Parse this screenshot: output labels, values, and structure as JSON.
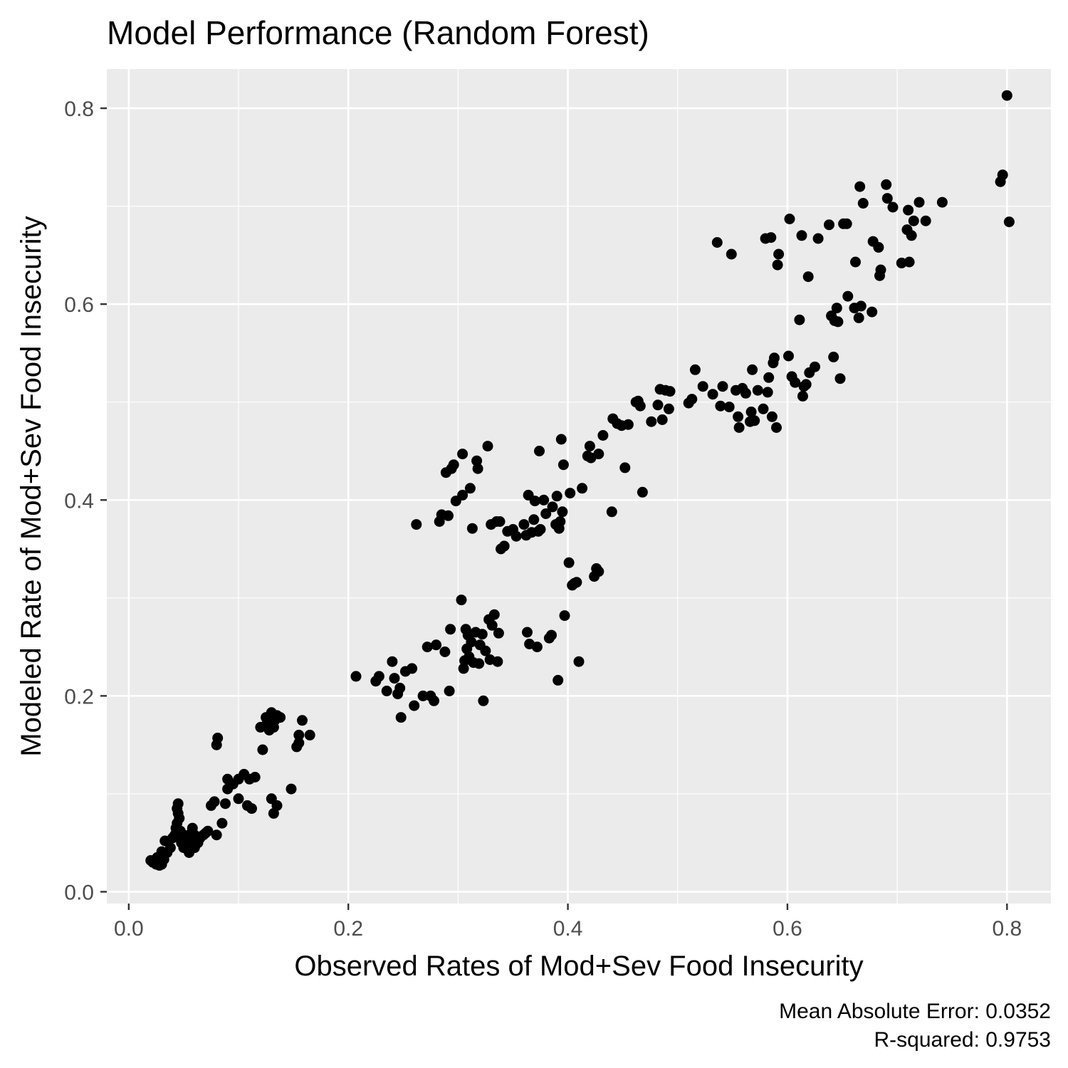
{
  "chart_data": {
    "type": "scatter",
    "title": "Model Performance (Random Forest)",
    "xlabel": "Observed Rates of Mod+Sev Food Insecurity",
    "ylabel": "Modeled Rate of Mod+Sev Food Insecurity",
    "xlim": [
      -0.02,
      0.84
    ],
    "ylim": [
      -0.012,
      0.84
    ],
    "x_ticks": [
      0.0,
      0.2,
      0.4,
      0.6,
      0.8
    ],
    "x_tick_labels": [
      "0.0",
      "0.2",
      "0.4",
      "0.6",
      "0.8"
    ],
    "y_ticks": [
      0.0,
      0.2,
      0.4,
      0.6,
      0.8
    ],
    "y_tick_labels": [
      "0.0",
      "0.2",
      "0.4",
      "0.6",
      "0.8"
    ],
    "grid": true,
    "legend": "none",
    "colors": {
      "panel": "#ebebeb",
      "point": "#000000",
      "tick_text": "#4d4d4d"
    },
    "caption": [
      "Mean Absolute Error: 0.0352",
      "R-squared: 0.9753"
    ],
    "points": [
      [
        0.02,
        0.032
      ],
      [
        0.022,
        0.03
      ],
      [
        0.025,
        0.028
      ],
      [
        0.028,
        0.027
      ],
      [
        0.03,
        0.028
      ],
      [
        0.026,
        0.035
      ],
      [
        0.032,
        0.033
      ],
      [
        0.035,
        0.04
      ],
      [
        0.03,
        0.041
      ],
      [
        0.038,
        0.045
      ],
      [
        0.033,
        0.052
      ],
      [
        0.04,
        0.055
      ],
      [
        0.042,
        0.058
      ],
      [
        0.045,
        0.06
      ],
      [
        0.043,
        0.065
      ],
      [
        0.044,
        0.07
      ],
      [
        0.046,
        0.075
      ],
      [
        0.045,
        0.08
      ],
      [
        0.044,
        0.085
      ],
      [
        0.045,
        0.09
      ],
      [
        0.047,
        0.062
      ],
      [
        0.05,
        0.058
      ],
      [
        0.048,
        0.05
      ],
      [
        0.052,
        0.055
      ],
      [
        0.053,
        0.048
      ],
      [
        0.055,
        0.052
      ],
      [
        0.05,
        0.045
      ],
      [
        0.057,
        0.06
      ],
      [
        0.058,
        0.065
      ],
      [
        0.06,
        0.058
      ],
      [
        0.062,
        0.055
      ],
      [
        0.055,
        0.04
      ],
      [
        0.06,
        0.045
      ],
      [
        0.063,
        0.05
      ],
      [
        0.065,
        0.055
      ],
      [
        0.068,
        0.058
      ],
      [
        0.07,
        0.06
      ],
      [
        0.072,
        0.062
      ],
      [
        0.075,
        0.088
      ],
      [
        0.078,
        0.092
      ],
      [
        0.08,
        0.058
      ],
      [
        0.08,
        0.15
      ],
      [
        0.081,
        0.157
      ],
      [
        0.085,
        0.07
      ],
      [
        0.088,
        0.09
      ],
      [
        0.09,
        0.105
      ],
      [
        0.09,
        0.115
      ],
      [
        0.095,
        0.11
      ],
      [
        0.1,
        0.095
      ],
      [
        0.1,
        0.115
      ],
      [
        0.105,
        0.12
      ],
      [
        0.108,
        0.088
      ],
      [
        0.11,
        0.115
      ],
      [
        0.112,
        0.085
      ],
      [
        0.115,
        0.117
      ],
      [
        0.12,
        0.168
      ],
      [
        0.122,
        0.145
      ],
      [
        0.125,
        0.17
      ],
      [
        0.125,
        0.178
      ],
      [
        0.128,
        0.165
      ],
      [
        0.13,
        0.172
      ],
      [
        0.13,
        0.183
      ],
      [
        0.132,
        0.168
      ],
      [
        0.133,
        0.175
      ],
      [
        0.135,
        0.18
      ],
      [
        0.138,
        0.178
      ],
      [
        0.13,
        0.095
      ],
      [
        0.132,
        0.08
      ],
      [
        0.135,
        0.088
      ],
      [
        0.148,
        0.105
      ],
      [
        0.153,
        0.148
      ],
      [
        0.155,
        0.152
      ],
      [
        0.155,
        0.16
      ],
      [
        0.158,
        0.175
      ],
      [
        0.165,
        0.16
      ],
      [
        0.207,
        0.22
      ],
      [
        0.225,
        0.215
      ],
      [
        0.228,
        0.22
      ],
      [
        0.235,
        0.205
      ],
      [
        0.24,
        0.235
      ],
      [
        0.242,
        0.218
      ],
      [
        0.245,
        0.202
      ],
      [
        0.247,
        0.208
      ],
      [
        0.248,
        0.178
      ],
      [
        0.252,
        0.225
      ],
      [
        0.258,
        0.228
      ],
      [
        0.26,
        0.19
      ],
      [
        0.262,
        0.375
      ],
      [
        0.268,
        0.2
      ],
      [
        0.272,
        0.25
      ],
      [
        0.275,
        0.2
      ],
      [
        0.278,
        0.195
      ],
      [
        0.28,
        0.252
      ],
      [
        0.283,
        0.378
      ],
      [
        0.285,
        0.385
      ],
      [
        0.288,
        0.245
      ],
      [
        0.289,
        0.428
      ],
      [
        0.291,
        0.384
      ],
      [
        0.292,
        0.205
      ],
      [
        0.293,
        0.268
      ],
      [
        0.294,
        0.432
      ],
      [
        0.296,
        0.436
      ],
      [
        0.298,
        0.399
      ],
      [
        0.303,
        0.298
      ],
      [
        0.304,
        0.405
      ],
      [
        0.304,
        0.447
      ],
      [
        0.305,
        0.228
      ],
      [
        0.306,
        0.236
      ],
      [
        0.307,
        0.268
      ],
      [
        0.308,
        0.248
      ],
      [
        0.309,
        0.262
      ],
      [
        0.31,
        0.24
      ],
      [
        0.311,
        0.412
      ],
      [
        0.312,
        0.255
      ],
      [
        0.313,
        0.371
      ],
      [
        0.314,
        0.234
      ],
      [
        0.316,
        0.265
      ],
      [
        0.317,
        0.44
      ],
      [
        0.318,
        0.432
      ],
      [
        0.319,
        0.233
      ],
      [
        0.32,
        0.252
      ],
      [
        0.322,
        0.263
      ],
      [
        0.323,
        0.195
      ],
      [
        0.325,
        0.246
      ],
      [
        0.327,
        0.455
      ],
      [
        0.328,
        0.278
      ],
      [
        0.329,
        0.237
      ],
      [
        0.33,
        0.375
      ],
      [
        0.331,
        0.272
      ],
      [
        0.333,
        0.283
      ],
      [
        0.335,
        0.378
      ],
      [
        0.336,
        0.235
      ],
      [
        0.337,
        0.264
      ],
      [
        0.338,
        0.378
      ],
      [
        0.339,
        0.35
      ],
      [
        0.342,
        0.353
      ],
      [
        0.345,
        0.368
      ],
      [
        0.35,
        0.37
      ],
      [
        0.353,
        0.363
      ],
      [
        0.36,
        0.375
      ],
      [
        0.362,
        0.364
      ],
      [
        0.363,
        0.265
      ],
      [
        0.364,
        0.405
      ],
      [
        0.365,
        0.253
      ],
      [
        0.367,
        0.367
      ],
      [
        0.369,
        0.38
      ],
      [
        0.37,
        0.399
      ],
      [
        0.372,
        0.25
      ],
      [
        0.373,
        0.368
      ],
      [
        0.374,
        0.45
      ],
      [
        0.375,
        0.37
      ],
      [
        0.378,
        0.4
      ],
      [
        0.38,
        0.386
      ],
      [
        0.383,
        0.259
      ],
      [
        0.385,
        0.262
      ],
      [
        0.386,
        0.393
      ],
      [
        0.389,
        0.375
      ],
      [
        0.39,
        0.404
      ],
      [
        0.391,
        0.216
      ],
      [
        0.392,
        0.371
      ],
      [
        0.393,
        0.378
      ],
      [
        0.394,
        0.462
      ],
      [
        0.395,
        0.388
      ],
      [
        0.396,
        0.436
      ],
      [
        0.397,
        0.282
      ],
      [
        0.401,
        0.336
      ],
      [
        0.402,
        0.407
      ],
      [
        0.404,
        0.313
      ],
      [
        0.406,
        0.315
      ],
      [
        0.408,
        0.316
      ],
      [
        0.41,
        0.235
      ],
      [
        0.413,
        0.412
      ],
      [
        0.418,
        0.445
      ],
      [
        0.42,
        0.455
      ],
      [
        0.421,
        0.443
      ],
      [
        0.424,
        0.322
      ],
      [
        0.426,
        0.33
      ],
      [
        0.428,
        0.327
      ],
      [
        0.428,
        0.447
      ],
      [
        0.432,
        0.466
      ],
      [
        0.44,
        0.388
      ],
      [
        0.441,
        0.483
      ],
      [
        0.445,
        0.478
      ],
      [
        0.449,
        0.476
      ],
      [
        0.452,
        0.433
      ],
      [
        0.455,
        0.477
      ],
      [
        0.462,
        0.5
      ],
      [
        0.464,
        0.501
      ],
      [
        0.466,
        0.496
      ],
      [
        0.468,
        0.408
      ],
      [
        0.476,
        0.48
      ],
      [
        0.482,
        0.497
      ],
      [
        0.484,
        0.513
      ],
      [
        0.486,
        0.482
      ],
      [
        0.489,
        0.512
      ],
      [
        0.492,
        0.493
      ],
      [
        0.493,
        0.511
      ],
      [
        0.51,
        0.499
      ],
      [
        0.513,
        0.503
      ],
      [
        0.516,
        0.533
      ],
      [
        0.523,
        0.516
      ],
      [
        0.532,
        0.508
      ],
      [
        0.536,
        0.663
      ],
      [
        0.539,
        0.496
      ],
      [
        0.541,
        0.516
      ],
      [
        0.547,
        0.495
      ],
      [
        0.549,
        0.651
      ],
      [
        0.553,
        0.512
      ],
      [
        0.555,
        0.485
      ],
      [
        0.556,
        0.474
      ],
      [
        0.559,
        0.514
      ],
      [
        0.562,
        0.509
      ],
      [
        0.566,
        0.48
      ],
      [
        0.567,
        0.49
      ],
      [
        0.568,
        0.533
      ],
      [
        0.57,
        0.481
      ],
      [
        0.573,
        0.512
      ],
      [
        0.578,
        0.493
      ],
      [
        0.58,
        0.667
      ],
      [
        0.582,
        0.51
      ],
      [
        0.583,
        0.525
      ],
      [
        0.585,
        0.668
      ],
      [
        0.586,
        0.485
      ],
      [
        0.587,
        0.54
      ],
      [
        0.588,
        0.545
      ],
      [
        0.59,
        0.474
      ],
      [
        0.591,
        0.64
      ],
      [
        0.592,
        0.651
      ],
      [
        0.601,
        0.547
      ],
      [
        0.602,
        0.687
      ],
      [
        0.604,
        0.526
      ],
      [
        0.607,
        0.52
      ],
      [
        0.611,
        0.584
      ],
      [
        0.613,
        0.67
      ],
      [
        0.614,
        0.506
      ],
      [
        0.615,
        0.516
      ],
      [
        0.617,
        0.518
      ],
      [
        0.619,
        0.628
      ],
      [
        0.62,
        0.53
      ],
      [
        0.625,
        0.536
      ],
      [
        0.628,
        0.667
      ],
      [
        0.638,
        0.681
      ],
      [
        0.64,
        0.588
      ],
      [
        0.642,
        0.546
      ],
      [
        0.643,
        0.583
      ],
      [
        0.645,
        0.596
      ],
      [
        0.646,
        0.582
      ],
      [
        0.648,
        0.524
      ],
      [
        0.651,
        0.682
      ],
      [
        0.654,
        0.682
      ],
      [
        0.655,
        0.608
      ],
      [
        0.661,
        0.596
      ],
      [
        0.662,
        0.643
      ],
      [
        0.665,
        0.586
      ],
      [
        0.666,
        0.72
      ],
      [
        0.667,
        0.598
      ],
      [
        0.669,
        0.703
      ],
      [
        0.677,
        0.592
      ],
      [
        0.678,
        0.664
      ],
      [
        0.683,
        0.658
      ],
      [
        0.684,
        0.629
      ],
      [
        0.685,
        0.635
      ],
      [
        0.69,
        0.722
      ],
      [
        0.691,
        0.708
      ],
      [
        0.696,
        0.699
      ],
      [
        0.704,
        0.642
      ],
      [
        0.709,
        0.676
      ],
      [
        0.71,
        0.696
      ],
      [
        0.711,
        0.643
      ],
      [
        0.713,
        0.67
      ],
      [
        0.715,
        0.685
      ],
      [
        0.72,
        0.704
      ],
      [
        0.726,
        0.685
      ],
      [
        0.741,
        0.704
      ],
      [
        0.794,
        0.725
      ],
      [
        0.796,
        0.732
      ],
      [
        0.8,
        0.813
      ],
      [
        0.802,
        0.684
      ]
    ]
  }
}
